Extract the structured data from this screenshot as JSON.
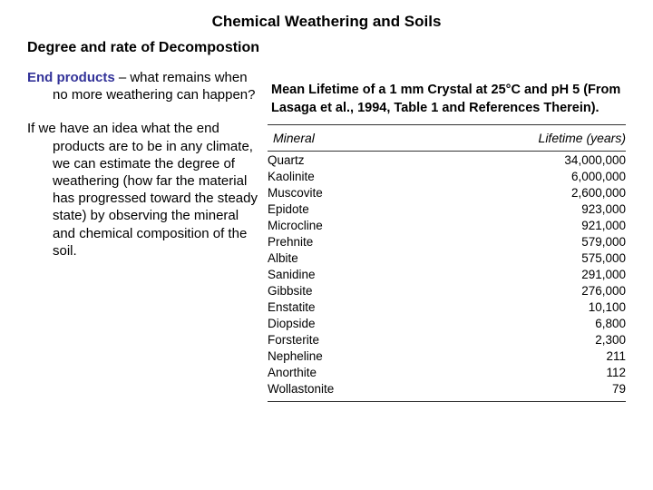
{
  "title": "Chemical Weathering and Soils",
  "subtitle": "Degree and rate of Decompostion",
  "left": {
    "end_products_label": "End products",
    "end_products_rest": " – what remains when no more weathering can happen?",
    "para2": "If we have an idea what the end products are to be in any climate, we can estimate the degree of weathering (how far the material has progressed toward the steady state) by observing the mineral and chemical composition of the soil."
  },
  "table": {
    "caption": "Mean Lifetime of a 1 mm Crystal at 25°C and pH 5 (From Lasaga et al., 1994, Table 1 and References Therein).",
    "col_mineral": "Mineral",
    "col_lifetime": "Lifetime (years)",
    "rows": [
      {
        "mineral": "Quartz",
        "lifetime": "34,000,000"
      },
      {
        "mineral": "Kaolinite",
        "lifetime": "6,000,000"
      },
      {
        "mineral": "Muscovite",
        "lifetime": "2,600,000"
      },
      {
        "mineral": "Epidote",
        "lifetime": "923,000"
      },
      {
        "mineral": "Microcline",
        "lifetime": "921,000"
      },
      {
        "mineral": "Prehnite",
        "lifetime": "579,000"
      },
      {
        "mineral": "Albite",
        "lifetime": "575,000"
      },
      {
        "mineral": "Sanidine",
        "lifetime": "291,000"
      },
      {
        "mineral": "Gibbsite",
        "lifetime": "276,000"
      },
      {
        "mineral": "Enstatite",
        "lifetime": "10,100"
      },
      {
        "mineral": "Diopside",
        "lifetime": "6,800"
      },
      {
        "mineral": "Forsterite",
        "lifetime": "2,300"
      },
      {
        "mineral": "Nepheline",
        "lifetime": "211"
      },
      {
        "mineral": "Anorthite",
        "lifetime": "112"
      },
      {
        "mineral": "Wollastonite",
        "lifetime": "79"
      }
    ]
  }
}
